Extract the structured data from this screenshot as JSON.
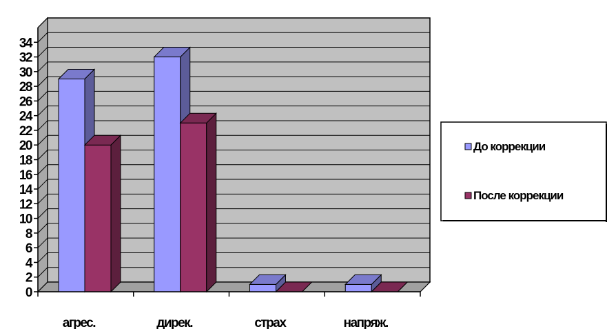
{
  "chart_data": {
    "type": "bar",
    "three_d": true,
    "categories": [
      "агрес.",
      "дирек.",
      "страх",
      "напряж."
    ],
    "series": [
      {
        "name": "До коррекции",
        "values": [
          29,
          32,
          1,
          1
        ],
        "color": "#9999FF"
      },
      {
        "name": "После коррекции",
        "values": [
          20,
          23,
          0,
          0
        ],
        "color": "#993366"
      }
    ],
    "y_ticks": [
      "0",
      "2",
      "4",
      "6",
      "8",
      "10",
      "12",
      "14",
      "16",
      "18",
      "20",
      "22",
      "24",
      "26",
      "28",
      "30",
      "32",
      "34"
    ],
    "ylim": [
      0,
      36
    ],
    "grid": true,
    "legend_position": "right",
    "wall_color": "#C0C0C0",
    "title": "",
    "xlabel": "",
    "ylabel": ""
  }
}
